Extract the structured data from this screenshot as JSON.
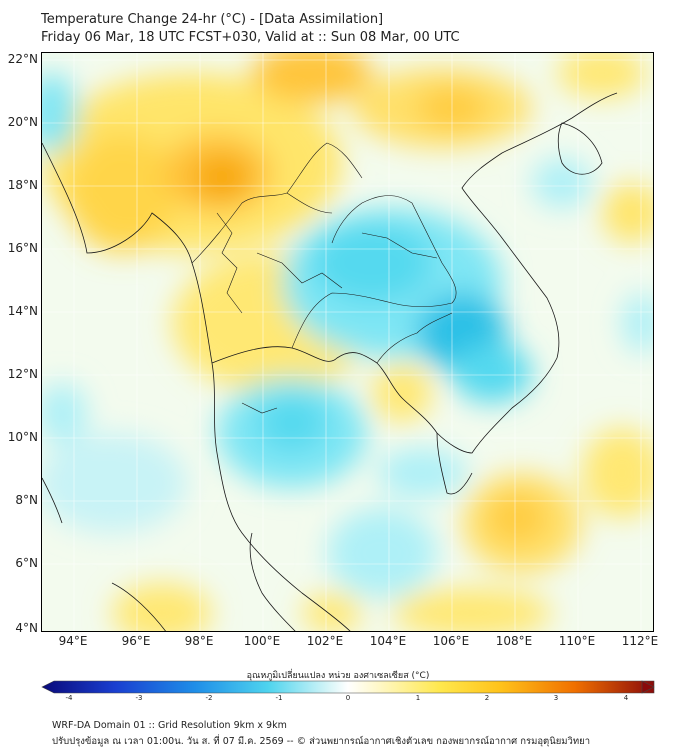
{
  "header": {
    "title": "Temperature Change 24-hr (°C) - [Data Assimilation]",
    "subtitle": "Friday 06 Mar, 18 UTC FCST+030, Valid at :: Sun 08 Mar, 00 UTC"
  },
  "map": {
    "lat_labels": [
      "22°N",
      "20°N",
      "18°N",
      "16°N",
      "14°N",
      "12°N",
      "10°N",
      "8°N",
      "6°N",
      "4°N"
    ],
    "lon_labels": [
      "94°E",
      "96°E",
      "98°E",
      "100°E",
      "102°E",
      "104°E",
      "106°E",
      "108°E",
      "110°E",
      "112°E"
    ],
    "lat_range": [
      4,
      22.2
    ],
    "lon_range": [
      93,
      112.5
    ]
  },
  "colorbar": {
    "title": "อุณหภูมิเปลี่ยนแปลง หน่วย องศาเซลเซียส (°C)",
    "ticks": [
      "-4",
      "-3",
      "-2",
      "-1",
      "0",
      "1",
      "2",
      "3",
      "4"
    ],
    "range": [
      -4,
      4
    ]
  },
  "footer": {
    "line1": "WRF-DA Domain 01 :: Grid Resolution 9km x 9km",
    "line2": "ปรับปรุงข้อมูล ณ เวลา 01:00น. วัน ส. ที่ 07 มี.ค. 2569 -- © ส่วนพยากรณ์อากาศเชิงตัวเลข กองพยากรณ์อากาศ กรมอุตุนิยมวิทยา"
  },
  "colors": {
    "warm": "#f7a600",
    "mid_warm": "#ffe84d",
    "neutral": "#fbfbe6",
    "cool": "#7fe6f4",
    "cold": "#2cc0e6"
  }
}
